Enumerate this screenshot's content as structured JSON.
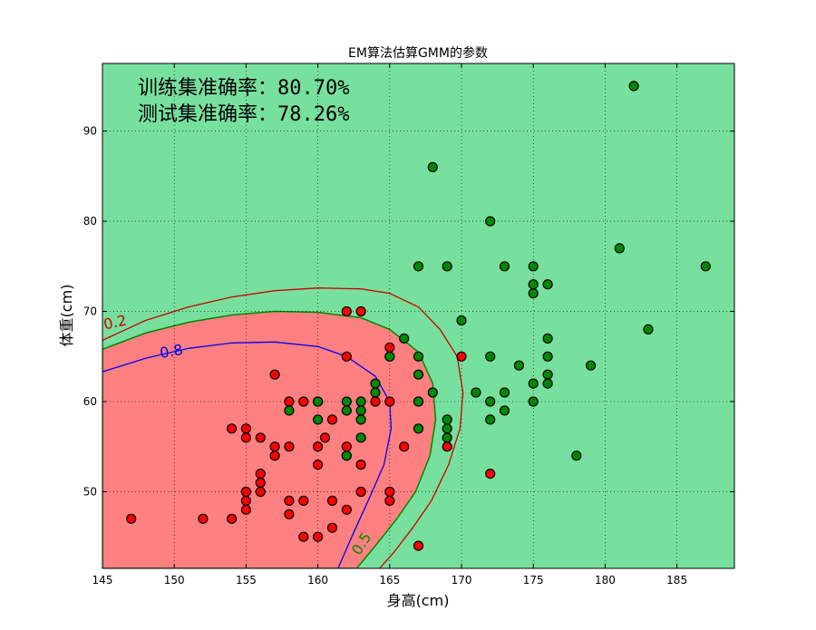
{
  "chart_data": {
    "type": "scatter",
    "title": "EM算法估算GMM的参数",
    "xlabel": "身高(cm)",
    "ylabel": "体重(cm)",
    "xlim": [
      145,
      189
    ],
    "ylim": [
      41.5,
      97.5
    ],
    "xticks": [
      145,
      150,
      155,
      160,
      165,
      170,
      175,
      180,
      185
    ],
    "yticks": [
      50,
      60,
      70,
      80,
      90
    ],
    "grid": true,
    "annotations": [
      "训练集准确率：80.70%",
      "测试集准确率：78.26%"
    ],
    "contour_labels": [
      "0.2",
      "0.8",
      "0.5"
    ],
    "colors": {
      "region_class0": "#ff8080",
      "region_class1": "#77e09e",
      "contour_02": "#cc0000",
      "contour_05": "#008800",
      "contour_08": "#0000ee",
      "point_red": "#ff0000",
      "point_green": "#008800"
    },
    "series": [
      {
        "name": "red",
        "color": "#ff0000",
        "points": [
          [
            147,
            47
          ],
          [
            152,
            47
          ],
          [
            154,
            47
          ],
          [
            154,
            57
          ],
          [
            155,
            57
          ],
          [
            155,
            56
          ],
          [
            155,
            50
          ],
          [
            155,
            49
          ],
          [
            155,
            48
          ],
          [
            156,
            56
          ],
          [
            156,
            52
          ],
          [
            156,
            51
          ],
          [
            156,
            50
          ],
          [
            157,
            63
          ],
          [
            157,
            55
          ],
          [
            157,
            54
          ],
          [
            158,
            60
          ],
          [
            158,
            55
          ],
          [
            158,
            49
          ],
          [
            158,
            47.5
          ],
          [
            159,
            60
          ],
          [
            159,
            49
          ],
          [
            159,
            45
          ],
          [
            160,
            60
          ],
          [
            160,
            55
          ],
          [
            160,
            53
          ],
          [
            160,
            45
          ],
          [
            160.5,
            56
          ],
          [
            161,
            58
          ],
          [
            161,
            49
          ],
          [
            161,
            46
          ],
          [
            162,
            70
          ],
          [
            162,
            65
          ],
          [
            162,
            55
          ],
          [
            162,
            54
          ],
          [
            162,
            48
          ],
          [
            163,
            70
          ],
          [
            163,
            53
          ],
          [
            163,
            50
          ],
          [
            164,
            60
          ],
          [
            165,
            66
          ],
          [
            165,
            65
          ],
          [
            165,
            60
          ],
          [
            165,
            50
          ],
          [
            165,
            49
          ],
          [
            166,
            55
          ],
          [
            167,
            44
          ],
          [
            169,
            55
          ],
          [
            170,
            65
          ],
          [
            172,
            52
          ]
        ]
      },
      {
        "name": "green",
        "color": "#008800",
        "points": [
          [
            158,
            59
          ],
          [
            160,
            60
          ],
          [
            160,
            58
          ],
          [
            162,
            60
          ],
          [
            162,
            59
          ],
          [
            162,
            54
          ],
          [
            163,
            60
          ],
          [
            163,
            59
          ],
          [
            163,
            58
          ],
          [
            163,
            56
          ],
          [
            164,
            62
          ],
          [
            164,
            61
          ],
          [
            165,
            65
          ],
          [
            166,
            67
          ],
          [
            167,
            75
          ],
          [
            167,
            65
          ],
          [
            167,
            63
          ],
          [
            167,
            60
          ],
          [
            167,
            57
          ],
          [
            168,
            86
          ],
          [
            168,
            61
          ],
          [
            169,
            75
          ],
          [
            169,
            58
          ],
          [
            169,
            57
          ],
          [
            169,
            56
          ],
          [
            170,
            69
          ],
          [
            171,
            61
          ],
          [
            172,
            80
          ],
          [
            172,
            65
          ],
          [
            172,
            60
          ],
          [
            172,
            58
          ],
          [
            173,
            75
          ],
          [
            173,
            61
          ],
          [
            173,
            59
          ],
          [
            174,
            64
          ],
          [
            175,
            75
          ],
          [
            175,
            73
          ],
          [
            175,
            72
          ],
          [
            175,
            62
          ],
          [
            175,
            60
          ],
          [
            176,
            73
          ],
          [
            176,
            67
          ],
          [
            176,
            65
          ],
          [
            176,
            63
          ],
          [
            176,
            62
          ],
          [
            178,
            54
          ],
          [
            179,
            64
          ],
          [
            181,
            77
          ],
          [
            182,
            95
          ],
          [
            183,
            68
          ],
          [
            187,
            75
          ]
        ]
      }
    ]
  }
}
